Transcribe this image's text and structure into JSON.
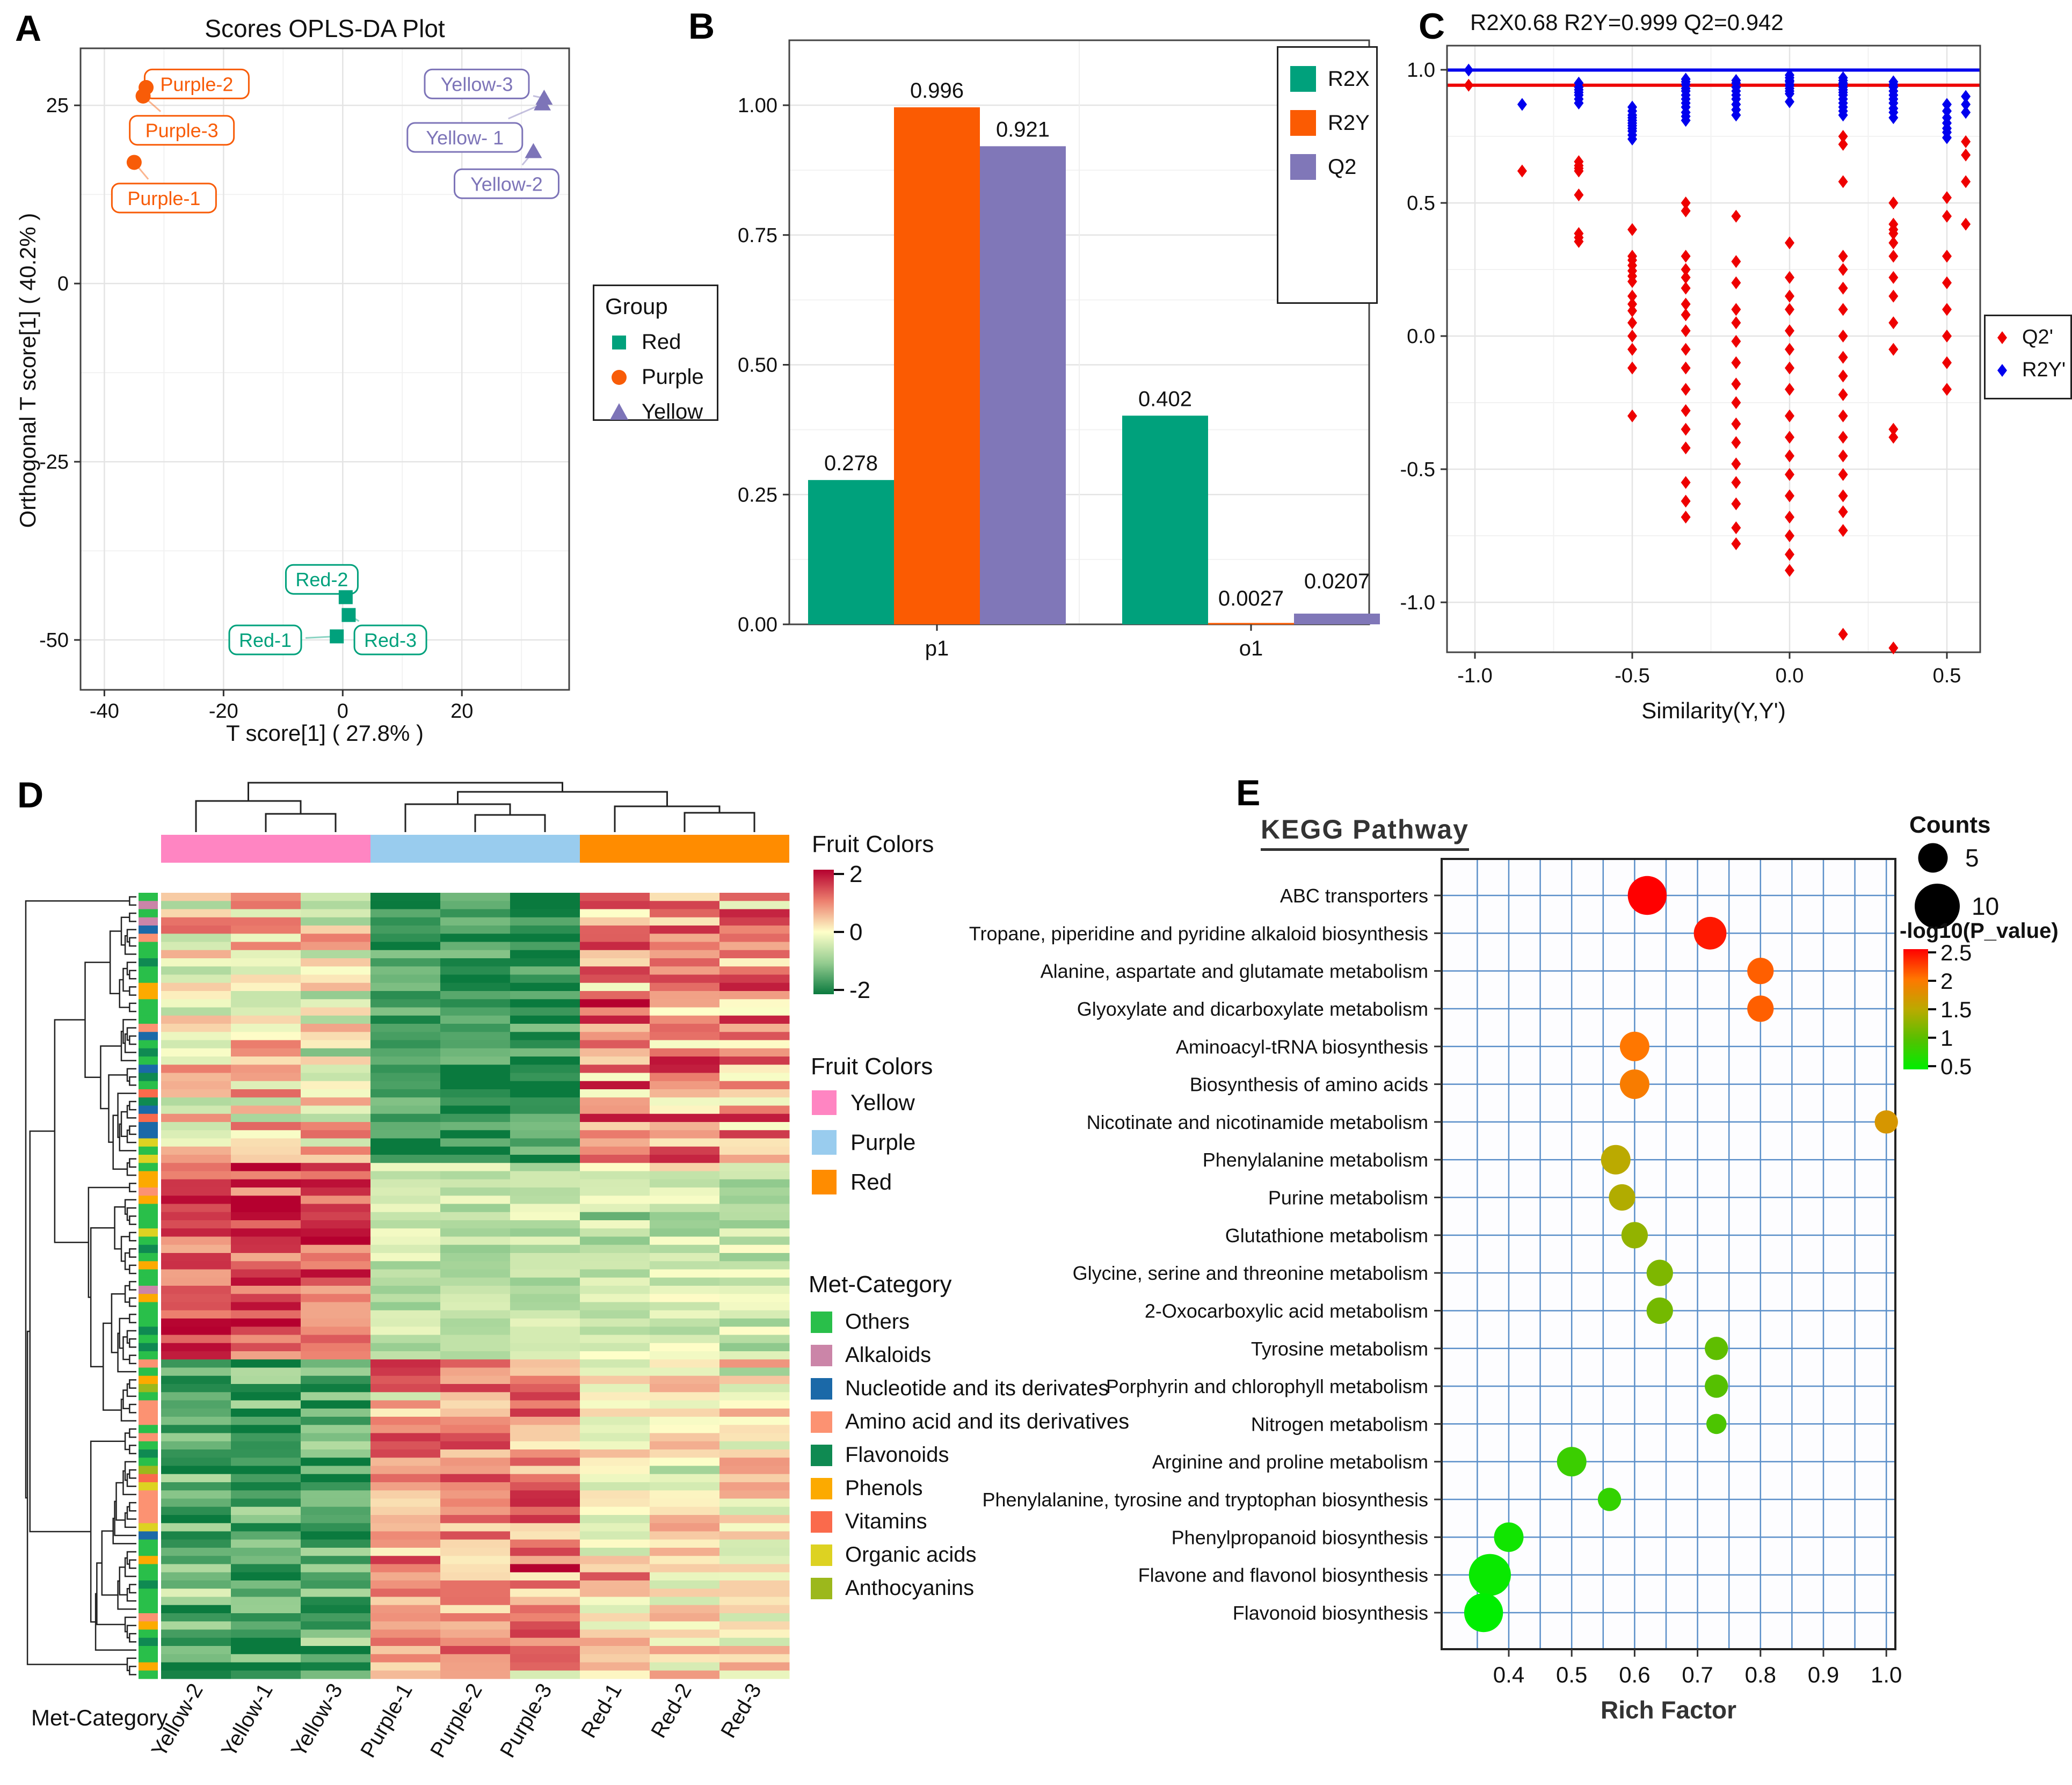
{
  "chart_data": [
    {
      "type": "scatter",
      "panel_label": "A",
      "title": "Scores OPLS-DA Plot",
      "xlabel": "T score[1] ( 27.8% )",
      "ylabel": "Orthogonal T score[1] ( 40.2% )",
      "xlim": [
        -44,
        38
      ],
      "ylim": [
        -57,
        33
      ],
      "x_ticks": [
        "-40",
        "-20",
        "0",
        "20"
      ],
      "x_tick_values": [
        -40,
        -20,
        0,
        20
      ],
      "y_ticks": [
        "25",
        "0",
        "-25",
        "-50"
      ],
      "y_tick_values": [
        25,
        0,
        -25,
        -50
      ],
      "legend_title": "Group",
      "grid": true,
      "groups": [
        {
          "name": "Red",
          "color": "#00A17C",
          "shape": "square",
          "points": [
            {
              "label": "Red-1",
              "x": -1.0,
              "y": -49.5,
              "label_x": -13,
              "label_y": -50
            },
            {
              "label": "Red-2",
              "x": 0.5,
              "y": -44.0,
              "label_x": -3.5,
              "label_y": -41.5
            },
            {
              "label": "Red-3",
              "x": 1.0,
              "y": -46.5,
              "label_x": 8,
              "label_y": -50
            }
          ]
        },
        {
          "name": "Purple",
          "color": "#F85C08",
          "shape": "circle",
          "points": [
            {
              "label": "Purple-1",
              "x": -35.0,
              "y": 17.0,
              "label_x": -30,
              "label_y": 12
            },
            {
              "label": "Purple-2",
              "x": -33.0,
              "y": 27.5,
              "label_x": -24.5,
              "label_y": 28
            },
            {
              "label": "Purple-3",
              "x": -33.5,
              "y": 26.3,
              "label_x": -27,
              "label_y": 21.5
            }
          ]
        },
        {
          "name": "Yellow",
          "color": "#7D74B8",
          "shape": "triangle",
          "points": [
            {
              "label": "Yellow- 1",
              "x": 33.5,
              "y": 25.2,
              "label_x": 20.5,
              "label_y": 20.5
            },
            {
              "label": "Yellow-2",
              "x": 32.0,
              "y": 18.5,
              "label_x": 27.5,
              "label_y": 14
            },
            {
              "label": "Yellow-3",
              "x": 33.8,
              "y": 26.0,
              "label_x": 22.5,
              "label_y": 28
            }
          ]
        }
      ]
    },
    {
      "type": "bar",
      "panel_label": "B",
      "categories": [
        "p1",
        "o1"
      ],
      "y_ticks": [
        "0.00",
        "0.25",
        "0.50",
        "0.75",
        "1.00"
      ],
      "y_tick_values": [
        0,
        0.25,
        0.5,
        0.75,
        1.0
      ],
      "ylim": [
        0,
        1.08
      ],
      "series": [
        {
          "name": "R2X",
          "color": "#00A17C",
          "values": [
            0.278,
            0.402
          ],
          "labels": [
            "0.278",
            "0.402"
          ]
        },
        {
          "name": "R2Y",
          "color": "#FB5B02",
          "values": [
            0.996,
            0.0027
          ],
          "labels": [
            "0.996",
            "0.0027"
          ]
        },
        {
          "name": "Q2",
          "color": "#8077B8",
          "values": [
            0.921,
            0.0207
          ],
          "labels": [
            "0.921",
            "0.0207"
          ]
        }
      ]
    },
    {
      "type": "scatter",
      "panel_label": "C",
      "title": "R2X0.68  R2Y=0.999  Q2=0.942",
      "xlabel": "Similarity(Y,Y')",
      "x_ticks": [
        "-1.0",
        "-0.5",
        "0.0",
        "0.5"
      ],
      "x_tick_values": [
        -1.0,
        -0.5,
        0.0,
        0.5
      ],
      "y_ticks": [
        "1.0",
        "0.5",
        "0.0",
        "-0.5",
        "-1.0"
      ],
      "y_tick_values": [
        1.0,
        0.5,
        0.0,
        -0.5,
        -1.0
      ],
      "xlim": [
        -1.09,
        0.6
      ],
      "ylim": [
        -1.28,
        1.12
      ],
      "hlines": [
        {
          "y": 0.999,
          "color": "#0000EE"
        },
        {
          "y": 0.942,
          "color": "#EE0000"
        }
      ],
      "legend": [
        {
          "label": "Q2'",
          "color": "#EE0000"
        },
        {
          "label": "R2Y'",
          "color": "#0000EE"
        }
      ],
      "blue_series_name": "R2Y'",
      "red_series_name": "Q2'",
      "blue_columns": [
        {
          "x": -1.02,
          "ys": [
            0.999
          ]
        },
        {
          "x": -0.85,
          "ys": [
            0.87
          ]
        },
        {
          "x": -0.67,
          "ys": [
            0.95,
            0.935,
            0.925,
            0.915,
            0.905,
            0.89,
            0.875
          ]
        },
        {
          "x": -0.5,
          "ys": [
            0.86,
            0.845,
            0.83,
            0.82,
            0.81,
            0.8,
            0.79,
            0.78,
            0.77,
            0.755,
            0.74
          ]
        },
        {
          "x": -0.33,
          "ys": [
            0.965,
            0.955,
            0.945,
            0.93,
            0.92,
            0.905,
            0.89,
            0.875,
            0.86,
            0.84,
            0.825,
            0.81
          ]
        },
        {
          "x": -0.17,
          "ys": [
            0.96,
            0.95,
            0.935,
            0.92,
            0.905,
            0.89,
            0.87,
            0.85,
            0.83
          ]
        },
        {
          "x": 0.0,
          "ys": [
            0.98,
            0.97,
            0.96,
            0.955,
            0.945,
            0.94,
            0.93,
            0.92,
            0.91,
            0.88
          ]
        },
        {
          "x": 0.17,
          "ys": [
            0.97,
            0.96,
            0.95,
            0.945,
            0.935,
            0.925,
            0.915,
            0.905,
            0.89,
            0.875,
            0.86,
            0.845,
            0.83
          ]
        },
        {
          "x": 0.33,
          "ys": [
            0.955,
            0.945,
            0.935,
            0.92,
            0.905,
            0.89,
            0.875,
            0.855,
            0.84,
            0.82
          ]
        },
        {
          "x": 0.5,
          "ys": [
            0.87,
            0.845,
            0.82,
            0.8,
            0.78,
            0.765,
            0.745
          ]
        },
        {
          "x": 0.56,
          "ys": [
            0.9,
            0.87,
            0.84
          ]
        }
      ],
      "red_columns": [
        {
          "x": -1.02,
          "ys": [
            0.942
          ]
        },
        {
          "x": -0.85,
          "ys": [
            0.62
          ]
        },
        {
          "x": -0.67,
          "ys": [
            0.655,
            0.64,
            0.63,
            0.62,
            0.53,
            0.385,
            0.37,
            0.355
          ]
        },
        {
          "x": -0.5,
          "ys": [
            0.4,
            0.3,
            0.285,
            0.265,
            0.245,
            0.225,
            0.205,
            0.15,
            0.12,
            0.095,
            0.05,
            0.0,
            -0.05,
            -0.12,
            -0.3
          ]
        },
        {
          "x": -0.33,
          "ys": [
            0.5,
            0.47,
            0.3,
            0.25,
            0.22,
            0.18,
            0.12,
            0.08,
            0.02,
            -0.05,
            -0.12,
            -0.2,
            -0.28,
            -0.35,
            -0.42,
            -0.55,
            -0.62,
            -0.68
          ]
        },
        {
          "x": -0.17,
          "ys": [
            0.45,
            0.28,
            0.2,
            0.1,
            0.05,
            -0.02,
            -0.1,
            -0.18,
            -0.25,
            -0.33,
            -0.4,
            -0.48,
            -0.55,
            -0.63,
            -0.72,
            -0.78
          ]
        },
        {
          "x": 0.0,
          "ys": [
            0.35,
            0.22,
            0.15,
            0.1,
            0.02,
            -0.05,
            -0.12,
            -0.2,
            -0.3,
            -0.38,
            -0.45,
            -0.52,
            -0.6,
            -0.68,
            -0.75,
            -0.82,
            -0.88
          ]
        },
        {
          "x": 0.17,
          "ys": [
            0.75,
            0.72,
            0.58,
            0.3,
            0.25,
            0.18,
            0.1,
            0.0,
            -0.08,
            -0.15,
            -0.22,
            -0.3,
            -0.38,
            -0.45,
            -0.52,
            -0.6,
            -0.66,
            -0.73,
            -1.12
          ]
        },
        {
          "x": 0.33,
          "ys": [
            0.5,
            0.42,
            0.4,
            0.385,
            0.35,
            0.3,
            0.22,
            0.15,
            0.05,
            -0.05,
            -0.35,
            -0.38,
            -1.2
          ]
        },
        {
          "x": 0.5,
          "ys": [
            0.52,
            0.45,
            0.3,
            0.2,
            0.1,
            0.0,
            -0.1,
            -0.2
          ]
        },
        {
          "x": 0.56,
          "ys": [
            0.73,
            0.68,
            0.58,
            0.42
          ]
        }
      ]
    },
    {
      "type": "heatmap",
      "panel_label": "D",
      "columns": [
        "Yellow-2",
        "Yellow-1",
        "Yellow-3",
        "Purple-1",
        "Purple-2",
        "Purple-3",
        "Red-1",
        "Red-2",
        "Red-3"
      ],
      "top_annotation_title": "Fruit Colors",
      "annotation_legend_title": "Fruit Colors",
      "met_legend_title": "Met-Category",
      "row_axis_title": "Met-Category",
      "col_groups": [
        {
          "name": "Yellow",
          "color": "#FF85C2",
          "cols": [
            0,
            1,
            2
          ]
        },
        {
          "name": "Purple",
          "color": "#99CCEE",
          "cols": [
            3,
            4,
            5
          ]
        },
        {
          "name": "Red",
          "color": "#FF8C00",
          "cols": [
            6,
            7,
            8
          ]
        }
      ],
      "value_legend_ticks": [
        "2",
        "0",
        "-2"
      ],
      "colormap": [
        [
          -2,
          "#0A7A3E"
        ],
        [
          -1,
          "#94CC90"
        ],
        [
          0,
          "#FEFFC9"
        ],
        [
          1,
          "#EC7F6E"
        ],
        [
          2,
          "#B5002F"
        ]
      ],
      "seed": 42,
      "n_rows": 96,
      "blocks": [
        {
          "rows": 33,
          "yellow": [
            0.2,
            0.75
          ],
          "purple": [
            -1.7,
            0.45
          ],
          "red": [
            0.85,
            0.75
          ]
        },
        {
          "rows": 24,
          "yellow": [
            1.35,
            0.55
          ],
          "purple": [
            -0.55,
            0.35
          ],
          "red": [
            -0.5,
            0.4
          ]
        },
        {
          "rows": 39,
          "yellow": [
            -1.45,
            0.55
          ],
          "purple": [
            0.9,
            0.6
          ],
          "red": [
            0.15,
            0.5
          ]
        }
      ],
      "row_categories": "OAOANMOOFOOPPOOOMNOFONFOVFNVNNGOGOPPMPOOOGOFOPOOAPOOOFOFOMOPYOMMMOMOFOYVGMMMMGNOOPOOFOOOMPOFOOPO",
      "met_categories": [
        {
          "key": "O",
          "label": "Others",
          "color": "#29BF4A"
        },
        {
          "key": "A",
          "label": "Alkaloids",
          "color": "#CB85A8"
        },
        {
          "key": "N",
          "label": "Nucleotide and its derivates",
          "color": "#1B69A8"
        },
        {
          "key": "M",
          "label": "Amino acid and its derivatives",
          "color": "#FC9272"
        },
        {
          "key": "F",
          "label": "Flavonoids",
          "color": "#0F8A52"
        },
        {
          "key": "P",
          "label": "Phenols",
          "color": "#FCAA00"
        },
        {
          "key": "V",
          "label": "Vitamins",
          "color": "#FA6A4C"
        },
        {
          "key": "G",
          "label": "Organic acids",
          "color": "#DDD222"
        },
        {
          "key": "Y",
          "label": "Anthocyanins",
          "color": "#9CB81C"
        }
      ]
    },
    {
      "type": "bubble",
      "panel_label": "E",
      "title": "KEGG Pathway",
      "xlabel": "Rich Factor",
      "x_ticks": [
        "0.4",
        "0.5",
        "0.6",
        "0.7",
        "0.8",
        "0.9",
        "1.0"
      ],
      "x_tick_values": [
        0.4,
        0.5,
        0.6,
        0.7,
        0.8,
        0.9,
        1.0
      ],
      "xlim": [
        0.33,
        1.06
      ],
      "size_legend": {
        "title": "Counts",
        "items": [
          "5",
          "10"
        ],
        "values": [
          5,
          10
        ]
      },
      "color_legend": {
        "title": "-log10(P_value)",
        "ticks": [
          "2.5",
          "2",
          "1.5",
          "1",
          "0.5"
        ],
        "stops": [
          [
            0.5,
            "#00EE00"
          ],
          [
            1.0,
            "#55C000"
          ],
          [
            1.5,
            "#BBAA00"
          ],
          [
            2.0,
            "#FF7700"
          ],
          [
            2.5,
            "#FF0000"
          ]
        ]
      },
      "pathways": [
        {
          "name": "ABC transporters",
          "rich_factor": 0.62,
          "count": 8,
          "neg_log10_p": 2.6
        },
        {
          "name": "Tropane, piperidine and pyridine alkaloid biosynthesis",
          "rich_factor": 0.72,
          "count": 6,
          "neg_log10_p": 2.4
        },
        {
          "name": "Alanine, aspartate and glutamate metabolism",
          "rich_factor": 0.8,
          "count": 4,
          "neg_log10_p": 2.1
        },
        {
          "name": "Glyoxylate and dicarboxylate metabolism",
          "rich_factor": 0.8,
          "count": 4,
          "neg_log10_p": 2.1
        },
        {
          "name": "Aminoacyl-tRNA biosynthesis",
          "rich_factor": 0.6,
          "count": 5,
          "neg_log10_p": 2.0
        },
        {
          "name": "Biosynthesis of amino acids",
          "rich_factor": 0.6,
          "count": 5,
          "neg_log10_p": 1.95
        },
        {
          "name": "Nicotinate and nicotinamide metabolism",
          "rich_factor": 1.0,
          "count": 3,
          "neg_log10_p": 1.7
        },
        {
          "name": "Phenylalanine metabolism",
          "rich_factor": 0.57,
          "count": 5,
          "neg_log10_p": 1.5
        },
        {
          "name": "Purine metabolism",
          "rich_factor": 0.58,
          "count": 4,
          "neg_log10_p": 1.45
        },
        {
          "name": "Glutathione metabolism",
          "rich_factor": 0.6,
          "count": 4,
          "neg_log10_p": 1.3
        },
        {
          "name": "Glycine, serine and threonine metabolism",
          "rich_factor": 0.64,
          "count": 4,
          "neg_log10_p": 1.2
        },
        {
          "name": "2-Oxocarboxylic acid metabolism",
          "rich_factor": 0.64,
          "count": 4,
          "neg_log10_p": 1.15
        },
        {
          "name": "Tyrosine metabolism",
          "rich_factor": 0.73,
          "count": 3,
          "neg_log10_p": 1.05
        },
        {
          "name": "Porphyrin and chlorophyll metabolism",
          "rich_factor": 0.73,
          "count": 3,
          "neg_log10_p": 1.0
        },
        {
          "name": "Nitrogen metabolism",
          "rich_factor": 0.73,
          "count": 2,
          "neg_log10_p": 0.95
        },
        {
          "name": "Arginine and proline metabolism",
          "rich_factor": 0.5,
          "count": 5,
          "neg_log10_p": 0.85
        },
        {
          "name": "Phenylalanine, tyrosine and tryptophan biosynthesis",
          "rich_factor": 0.56,
          "count": 3,
          "neg_log10_p": 0.8
        },
        {
          "name": "Phenylpropanoid biosynthesis",
          "rich_factor": 0.4,
          "count": 5,
          "neg_log10_p": 0.6
        },
        {
          "name": "Flavone and flavonol biosynthesis",
          "rich_factor": 0.37,
          "count": 9,
          "neg_log10_p": 0.55
        },
        {
          "name": "Flavonoid biosynthesis",
          "rich_factor": 0.36,
          "count": 8,
          "neg_log10_p": 0.5
        }
      ]
    }
  ]
}
